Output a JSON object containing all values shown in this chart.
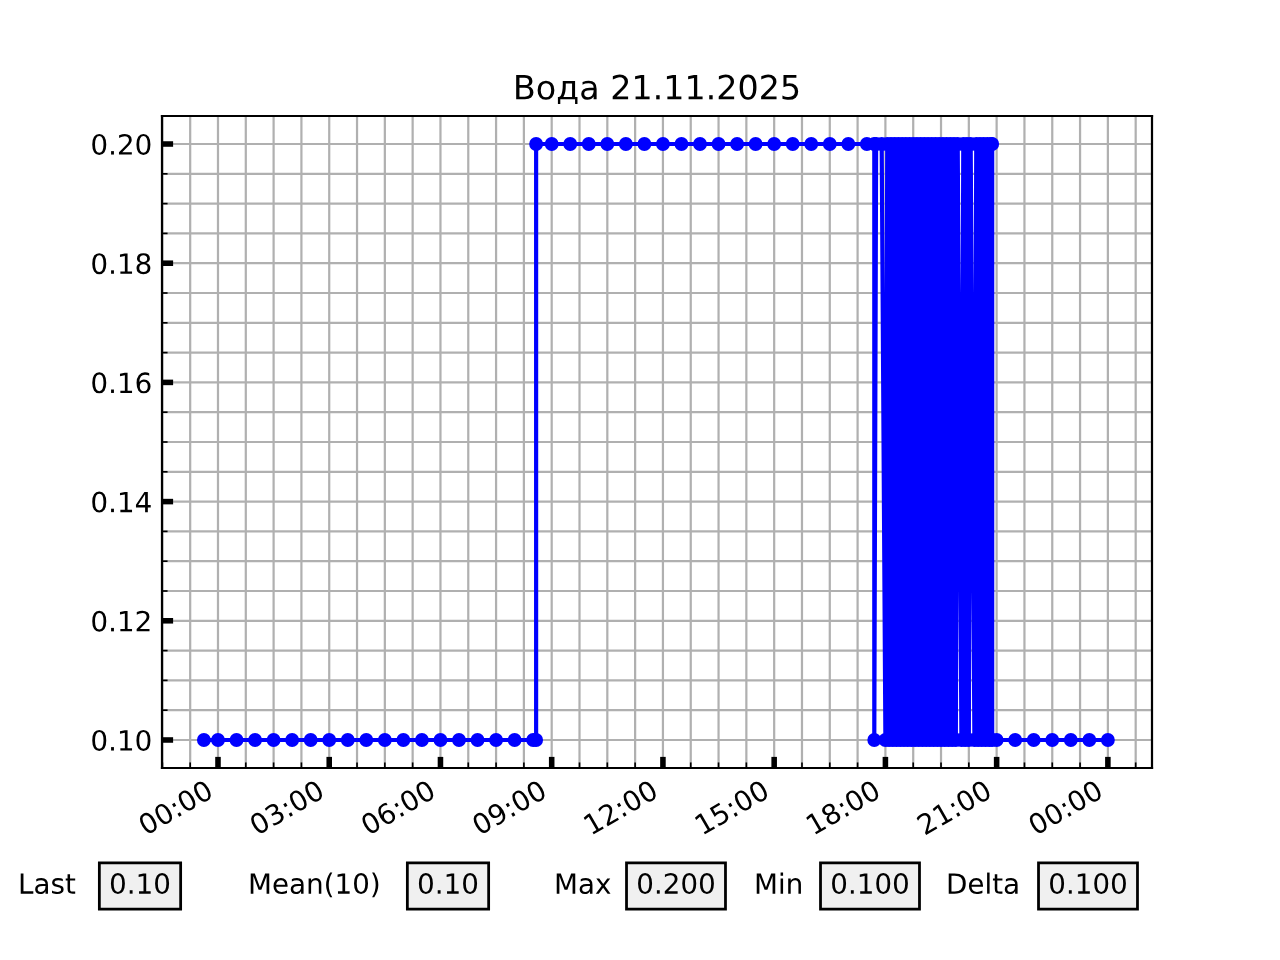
{
  "chart_data": {
    "type": "line",
    "title": "Вода 21.11.2025",
    "xlim": [
      -1.51,
      25.19
    ],
    "ylim": [
      0.0953,
      0.2047
    ],
    "xticks": [
      {
        "value": 0,
        "label": "00:00"
      },
      {
        "value": 3,
        "label": "03:00"
      },
      {
        "value": 6,
        "label": "06:00"
      },
      {
        "value": 9,
        "label": "09:00"
      },
      {
        "value": 12,
        "label": "12:00"
      },
      {
        "value": 15,
        "label": "15:00"
      },
      {
        "value": 18,
        "label": "18:00"
      },
      {
        "value": 21,
        "label": "21:00"
      },
      {
        "value": 24,
        "label": "00:00"
      }
    ],
    "yticks": [
      {
        "value": 0.1,
        "label": "0.10"
      },
      {
        "value": 0.12,
        "label": "0.12"
      },
      {
        "value": 0.14,
        "label": "0.14"
      },
      {
        "value": 0.16,
        "label": "0.16"
      },
      {
        "value": 0.18,
        "label": "0.18"
      },
      {
        "value": 0.2,
        "label": "0.20"
      }
    ],
    "grid": true,
    "marker": "circle",
    "line_style": "solid",
    "series": [
      {
        "color": "#0000ff",
        "x": [
          -0.38,
          0.0,
          0.5,
          1.0,
          1.5,
          2.0,
          2.5,
          3.0,
          3.5,
          4.0,
          4.5,
          5.0,
          5.5,
          6.0,
          6.5,
          7.0,
          7.5,
          8.0,
          8.5,
          8.58,
          8.58,
          9.0,
          9.5,
          10.0,
          10.5,
          11.0,
          11.5,
          12.0,
          12.5,
          13.0,
          13.5,
          14.0,
          14.5,
          15.0,
          15.5,
          16.0,
          16.5,
          17.0,
          17.5,
          17.7,
          17.7,
          17.75,
          17.9,
          18.0,
          18.05,
          18.1,
          18.15,
          18.2,
          18.25,
          18.3,
          18.35,
          18.4,
          18.45,
          18.5,
          18.55,
          18.6,
          18.65,
          18.7,
          18.75,
          18.8,
          18.85,
          18.9,
          18.95,
          19.0,
          19.05,
          19.1,
          19.15,
          19.2,
          19.25,
          19.3,
          19.35,
          19.4,
          19.45,
          19.5,
          19.55,
          19.6,
          19.65,
          19.7,
          19.75,
          19.8,
          19.85,
          19.9,
          19.95,
          20.05,
          20.1,
          20.15,
          20.2,
          20.25,
          20.3,
          20.4,
          20.45,
          20.5,
          20.55,
          20.6,
          20.65,
          20.7,
          20.75,
          20.8,
          20.85,
          20.88,
          20.88,
          21.0,
          21.5,
          22.0,
          22.5,
          23.0,
          23.5,
          24.0
        ],
        "values": [
          0.1,
          0.1,
          0.1,
          0.1,
          0.1,
          0.1,
          0.1,
          0.1,
          0.1,
          0.1,
          0.1,
          0.1,
          0.1,
          0.1,
          0.1,
          0.1,
          0.1,
          0.1,
          0.1,
          0.1,
          0.2,
          0.2,
          0.2,
          0.2,
          0.2,
          0.2,
          0.2,
          0.2,
          0.2,
          0.2,
          0.2,
          0.2,
          0.2,
          0.2,
          0.2,
          0.2,
          0.2,
          0.2,
          0.2,
          0.2,
          0.1,
          0.2,
          0.2,
          0.1,
          0.2,
          0.1,
          0.2,
          0.1,
          0.2,
          0.1,
          0.2,
          0.1,
          0.2,
          0.1,
          0.2,
          0.1,
          0.2,
          0.1,
          0.2,
          0.1,
          0.2,
          0.1,
          0.2,
          0.1,
          0.2,
          0.1,
          0.2,
          0.1,
          0.2,
          0.1,
          0.2,
          0.1,
          0.2,
          0.1,
          0.2,
          0.1,
          0.2,
          0.1,
          0.2,
          0.1,
          0.2,
          0.1,
          0.2,
          0.1,
          0.2,
          0.1,
          0.2,
          0.1,
          0.2,
          0.1,
          0.2,
          0.1,
          0.2,
          0.1,
          0.2,
          0.1,
          0.2,
          0.1,
          0.2,
          0.2,
          0.1,
          0.1,
          0.1,
          0.1,
          0.1,
          0.1,
          0.1,
          0.1
        ]
      }
    ],
    "annotations": [
      "Last",
      "0.10",
      "Mean(10)",
      "0.10",
      "Max",
      "0.200",
      "Min",
      "0.100",
      "Delta",
      "0.100"
    ]
  }
}
